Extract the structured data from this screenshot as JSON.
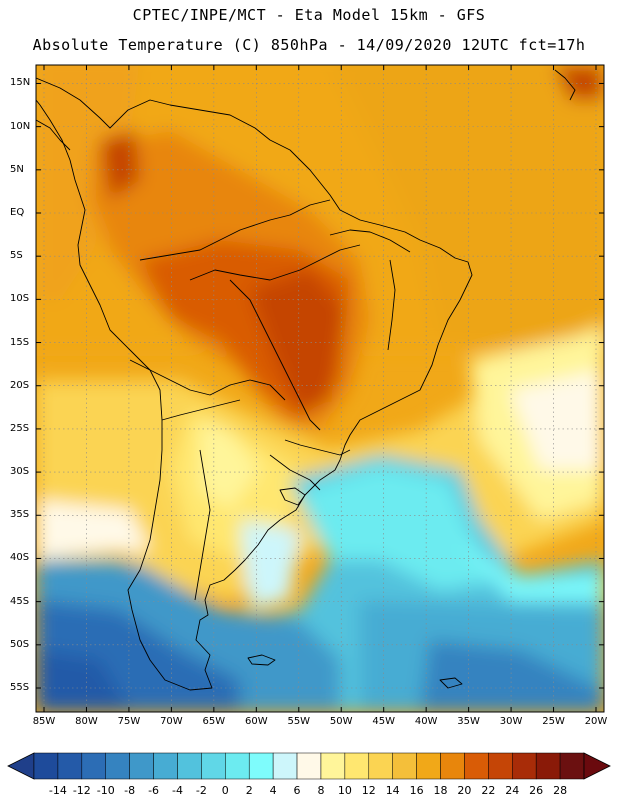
{
  "header": {
    "title_line1": "CPTEC/INPE/MCT  -   Eta Model 15km  - GFS",
    "title_line2": "Absolute Temperature (C) 850hPa - 14/09/2020 12UTC fct=17h"
  },
  "map": {
    "lat_labels": [
      "15N",
      "10N",
      "5N",
      "EQ",
      "5S",
      "10S",
      "15S",
      "20S",
      "25S",
      "30S",
      "35S",
      "40S",
      "45S",
      "50S",
      "55S"
    ],
    "lat_values": [
      15,
      10,
      5,
      0,
      -5,
      -10,
      -15,
      -20,
      -25,
      -30,
      -35,
      -40,
      -45,
      -50,
      -55
    ],
    "lon_labels": [
      "85W",
      "80W",
      "75W",
      "70W",
      "65W",
      "60W",
      "55W",
      "50W",
      "45W",
      "40W",
      "35W",
      "30W",
      "25W",
      "20W"
    ],
    "lon_values": [
      -85,
      -80,
      -75,
      -70,
      -65,
      -60,
      -55,
      -50,
      -45,
      -40,
      -35,
      -30,
      -25,
      -20
    ]
  },
  "colorbar": {
    "labels": [
      "-14",
      "-12",
      "-10",
      "-8",
      "-6",
      "-4",
      "-2",
      "0",
      "2",
      "4",
      "6",
      "8",
      "10",
      "12",
      "14",
      "16",
      "18",
      "20",
      "22",
      "24",
      "26",
      "28"
    ],
    "colors": [
      "#1e4b9b",
      "#245aa8",
      "#2c6db5",
      "#3583c0",
      "#3f98c9",
      "#47acd3",
      "#52c2dd",
      "#60d7e7",
      "#6cebf0",
      "#7efcfc",
      "#cdf6fb",
      "#fff9e8",
      "#fff59a",
      "#ffe770",
      "#fbd452",
      "#f4bf3a",
      "#f1a818",
      "#e8860c",
      "#d95c06",
      "#c54506",
      "#a82c08",
      "#8a1a08",
      "#6b1010"
    ],
    "under_color": "#1f3f8a",
    "over_color": "#6a0a0e"
  }
}
